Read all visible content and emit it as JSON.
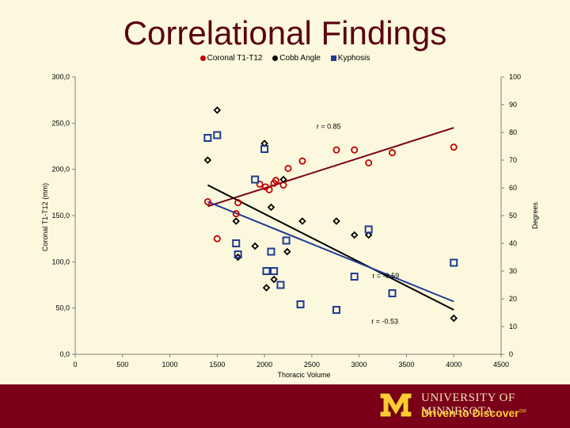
{
  "slide": {
    "title": "Correlational Findings",
    "background": "#fcf8dd",
    "title_color": "#5a0010"
  },
  "footer": {
    "university": "UNIVERSITY OF MINNESOTA",
    "tagline": "Driven to Discover",
    "tagline_mark": "SM",
    "background": "#7a0019",
    "logo_color": "#ffcc33"
  },
  "chart_data": {
    "type": "scatter",
    "legend": {
      "position": "top",
      "entries": [
        {
          "label": "Coronal T1-T12",
          "color": "#c00000",
          "marker": "circle"
        },
        {
          "label": "Cobb Angle",
          "color": "#000000",
          "marker": "diamond"
        },
        {
          "label": "Kyphosis",
          "color": "#1f3a93",
          "marker": "square"
        }
      ]
    },
    "xlabel": "Thoracic Volume",
    "ylabel_left": "Coronal T1-T12 (mm)",
    "ylabel_right": "Degrees",
    "xlim": [
      0,
      4500
    ],
    "ylim_left": [
      0,
      300
    ],
    "ylim_right": [
      0,
      100
    ],
    "x_ticks": [
      "0",
      "500",
      "1000",
      "1500",
      "2000",
      "2500",
      "3000",
      "3500",
      "4000",
      "4500"
    ],
    "y_left_ticks": [
      "0,0",
      "50,0",
      "100,0",
      "150,0",
      "200,0",
      "250,0",
      "300,0"
    ],
    "y_right_ticks": [
      "0",
      "10",
      "20",
      "30",
      "40",
      "50",
      "60",
      "70",
      "80",
      "90",
      "100"
    ],
    "grid": false,
    "series": [
      {
        "name": "Coronal T1-T12",
        "axis": "left",
        "color": "#c00000",
        "marker": "circle",
        "points": [
          [
            1400,
            165
          ],
          [
            1500,
            125
          ],
          [
            1700,
            152
          ],
          [
            1720,
            164
          ],
          [
            1950,
            184
          ],
          [
            2010,
            181
          ],
          [
            2050,
            178
          ],
          [
            2100,
            185
          ],
          [
            2120,
            188
          ],
          [
            2200,
            183
          ],
          [
            2250,
            201
          ],
          [
            2400,
            209
          ],
          [
            2760,
            221
          ],
          [
            2950,
            221
          ],
          [
            3100,
            207
          ],
          [
            3350,
            218
          ],
          [
            4000,
            224
          ]
        ],
        "trendline": {
          "x": [
            1400,
            4000
          ],
          "y": [
            160,
            245
          ]
        },
        "annotation": "r = 0.85"
      },
      {
        "name": "Cobb Angle",
        "axis": "right",
        "color": "#000000",
        "marker": "diamond",
        "points": [
          [
            1400,
            70
          ],
          [
            1500,
            88
          ],
          [
            1700,
            48
          ],
          [
            1720,
            35
          ],
          [
            1900,
            39
          ],
          [
            2000,
            76
          ],
          [
            2020,
            24
          ],
          [
            2070,
            53
          ],
          [
            2100,
            27
          ],
          [
            2200,
            63
          ],
          [
            2240,
            37
          ],
          [
            2400,
            48
          ],
          [
            2760,
            48
          ],
          [
            2950,
            43
          ],
          [
            3100,
            43
          ],
          [
            4000,
            13
          ]
        ],
        "trendline": {
          "x": [
            1400,
            4000
          ],
          "y": [
            61,
            16
          ]
        },
        "annotation": "r = -0.53"
      },
      {
        "name": "Kyphosis",
        "axis": "right",
        "color": "#1f3a93",
        "marker": "square",
        "points": [
          [
            1400,
            78
          ],
          [
            1500,
            79
          ],
          [
            1700,
            40
          ],
          [
            1720,
            36
          ],
          [
            1900,
            63
          ],
          [
            2000,
            74
          ],
          [
            2020,
            30
          ],
          [
            2070,
            37
          ],
          [
            2100,
            30
          ],
          [
            2170,
            25
          ],
          [
            2230,
            41
          ],
          [
            2380,
            18
          ],
          [
            2760,
            16
          ],
          [
            2950,
            28
          ],
          [
            3100,
            45
          ],
          [
            3350,
            22
          ],
          [
            4000,
            33
          ]
        ],
        "trendline": {
          "x": [
            1400,
            4000
          ],
          "y": [
            55,
            19
          ]
        },
        "annotation": "r = -0.59"
      }
    ]
  }
}
